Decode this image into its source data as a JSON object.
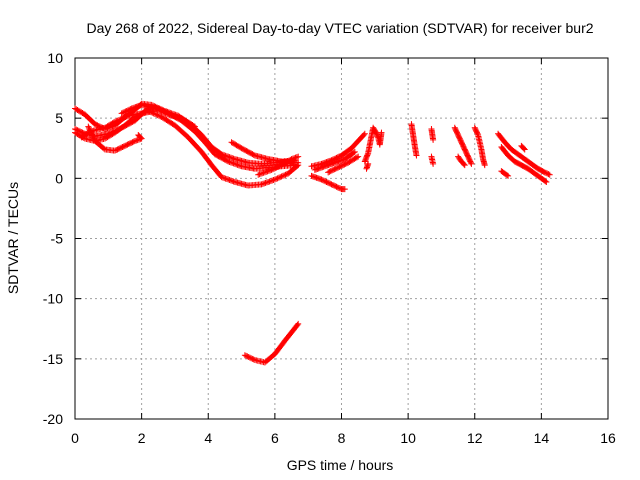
{
  "chart_data": {
    "type": "scatter",
    "title": "Day 268 of 2022, Sidereal Day-to-day VTEC variation (SDTVAR) for receiver bur2",
    "xlabel": "GPS time / hours",
    "ylabel": "SDTVAR / TECUs",
    "xlim": [
      0,
      16
    ],
    "ylim": [
      -20,
      10
    ],
    "x_ticks": [
      0,
      2,
      4,
      6,
      8,
      10,
      12,
      14,
      16
    ],
    "y_ticks": [
      -20,
      -15,
      -10,
      -5,
      0,
      5,
      10
    ],
    "x_tick_labels": [
      "0",
      "2",
      "4",
      "6",
      "8",
      "10",
      "12",
      "14",
      "16"
    ],
    "y_tick_labels": [
      "-20",
      "-15",
      "-10",
      "-5",
      "0",
      "5",
      "10"
    ],
    "grid": true,
    "marker": "+",
    "series": [
      {
        "name": "SDTVAR",
        "color": "#ff0000",
        "tracks": [
          [
            [
              0,
              5.8
            ],
            [
              0.3,
              5.3
            ],
            [
              0.6,
              4.5
            ],
            [
              0.9,
              4.1
            ],
            [
              1.2,
              4.4
            ],
            [
              1.5,
              5.1
            ],
            [
              1.8,
              5.7
            ],
            [
              2.0,
              6.2
            ],
            [
              2.3,
              6.1
            ],
            [
              2.7,
              5.6
            ],
            [
              3.1,
              5.2
            ],
            [
              3.5,
              4.4
            ],
            [
              3.8,
              3.6
            ],
            [
              4.1,
              2.6
            ],
            [
              4.4,
              2.0
            ],
            [
              4.8,
              1.6
            ],
            [
              5.2,
              1.3
            ],
            [
              5.6,
              1.2
            ],
            [
              6.0,
              1.3
            ],
            [
              6.4,
              1.4
            ],
            [
              6.7,
              1.3
            ]
          ],
          [
            [
              0,
              4.1
            ],
            [
              0.3,
              3.7
            ],
            [
              0.6,
              3.5
            ],
            [
              1.0,
              3.7
            ],
            [
              1.4,
              4.2
            ],
            [
              1.8,
              4.8
            ],
            [
              2.1,
              5.6
            ],
            [
              2.4,
              5.9
            ],
            [
              2.8,
              5.4
            ],
            [
              3.2,
              4.8
            ],
            [
              3.6,
              3.9
            ],
            [
              3.9,
              3.0
            ],
            [
              4.2,
              2.0
            ],
            [
              4.6,
              1.4
            ],
            [
              5.0,
              1.0
            ],
            [
              5.4,
              0.8
            ],
            [
              5.8,
              0.9
            ],
            [
              6.2,
              1.0
            ],
            [
              6.6,
              1.1
            ]
          ],
          [
            [
              0,
              3.8
            ],
            [
              0.3,
              3.3
            ],
            [
              0.6,
              3.1
            ],
            [
              0.9,
              3.3
            ],
            [
              1.2,
              3.8
            ],
            [
              1.5,
              4.4
            ],
            [
              1.8,
              5.1
            ],
            [
              2.2,
              5.6
            ],
            [
              2.6,
              5.1
            ],
            [
              3.0,
              4.4
            ],
            [
              3.4,
              3.4
            ],
            [
              3.8,
              2.2
            ],
            [
              4.1,
              1.1
            ],
            [
              4.4,
              0.1
            ],
            [
              4.8,
              -0.3
            ],
            [
              5.2,
              -0.6
            ],
            [
              5.6,
              -0.5
            ],
            [
              6.0,
              -0.1
            ],
            [
              6.4,
              0.4
            ],
            [
              6.7,
              1.1
            ]
          ],
          [
            [
              0.4,
              4.3
            ],
            [
              0.6,
              3.1
            ],
            [
              0.9,
              2.4
            ],
            [
              1.2,
              2.3
            ],
            [
              1.5,
              2.7
            ],
            [
              1.8,
              3.1
            ],
            [
              2.0,
              3.3
            ],
            [
              1.9,
              3.6
            ]
          ],
          [
            [
              0.2,
              3.4
            ],
            [
              0.4,
              3.8
            ],
            [
              0.6,
              4.0
            ],
            [
              0.9,
              4.2
            ],
            [
              1.2,
              4.7
            ],
            [
              1.6,
              5.2
            ],
            [
              2.0,
              5.4
            ],
            [
              2.4,
              5.6
            ]
          ],
          [
            [
              1.4,
              5.4
            ],
            [
              1.7,
              5.8
            ],
            [
              2.0,
              6.1
            ],
            [
              2.4,
              5.8
            ],
            [
              2.8,
              5.3
            ],
            [
              3.2,
              5.0
            ],
            [
              3.6,
              4.3
            ]
          ],
          [
            [
              4.7,
              3.0
            ],
            [
              5.0,
              2.5
            ],
            [
              5.4,
              1.9
            ],
            [
              5.8,
              1.6
            ],
            [
              6.2,
              1.4
            ],
            [
              6.6,
              1.5
            ]
          ],
          [
            [
              5.5,
              0.3
            ],
            [
              5.9,
              0.7
            ],
            [
              6.2,
              1.1
            ],
            [
              6.5,
              1.6
            ],
            [
              6.7,
              1.8
            ]
          ],
          [
            [
              5.1,
              -14.7
            ],
            [
              5.4,
              -15.1
            ],
            [
              5.7,
              -15.3
            ],
            [
              6.0,
              -14.6
            ],
            [
              6.3,
              -13.5
            ],
            [
              6.5,
              -12.8
            ],
            [
              6.7,
              -12.1
            ]
          ],
          [
            [
              7.1,
              1.0
            ],
            [
              7.4,
              1.2
            ],
            [
              7.7,
              1.5
            ],
            [
              8.0,
              1.9
            ],
            [
              8.3,
              2.5
            ],
            [
              8.5,
              3.1
            ],
            [
              8.7,
              3.7
            ]
          ],
          [
            [
              7.1,
              0.2
            ],
            [
              7.4,
              -0.1
            ],
            [
              7.7,
              -0.5
            ],
            [
              8.0,
              -0.9
            ],
            [
              8.1,
              -0.9
            ]
          ],
          [
            [
              7.2,
              0.7
            ],
            [
              7.5,
              1.0
            ],
            [
              7.8,
              1.3
            ],
            [
              8.1,
              1.6
            ],
            [
              8.4,
              2.2
            ]
          ],
          [
            [
              7.6,
              0.5
            ],
            [
              7.9,
              0.9
            ],
            [
              8.2,
              1.3
            ],
            [
              8.5,
              1.8
            ]
          ],
          [
            [
              8.7,
              1.4
            ],
            [
              8.8,
              2.1
            ],
            [
              8.85,
              2.8
            ],
            [
              8.9,
              3.5
            ],
            [
              8.95,
              4.2
            ],
            [
              9.0,
              4.0
            ],
            [
              9.1,
              3.4
            ],
            [
              9.15,
              2.8
            ],
            [
              9.2,
              3.8
            ]
          ],
          [
            [
              8.75,
              0.8
            ],
            [
              8.8,
              1.2
            ]
          ],
          [
            [
              10.1,
              4.5
            ],
            [
              10.15,
              3.6
            ],
            [
              10.2,
              2.7
            ],
            [
              10.25,
              1.9
            ]
          ],
          [
            [
              10.7,
              4.1
            ],
            [
              10.75,
              3.2
            ]
          ],
          [
            [
              10.7,
              1.8
            ],
            [
              10.75,
              1.2
            ]
          ],
          [
            [
              11.4,
              4.2
            ],
            [
              11.5,
              3.6
            ],
            [
              11.6,
              3.0
            ],
            [
              11.7,
              2.4
            ],
            [
              11.8,
              1.8
            ],
            [
              11.9,
              1.2
            ]
          ],
          [
            [
              11.5,
              1.8
            ],
            [
              11.6,
              1.4
            ],
            [
              11.7,
              1.1
            ]
          ],
          [
            [
              12.0,
              4.2
            ],
            [
              12.1,
              3.6
            ],
            [
              12.15,
              3.0
            ],
            [
              12.2,
              2.4
            ],
            [
              12.25,
              1.6
            ],
            [
              12.3,
              1.1
            ]
          ],
          [
            [
              12.7,
              3.7
            ],
            [
              12.9,
              3.0
            ],
            [
              13.1,
              2.4
            ],
            [
              13.3,
              2.0
            ],
            [
              13.5,
              1.6
            ],
            [
              13.7,
              1.2
            ],
            [
              13.9,
              0.8
            ],
            [
              14.1,
              0.5
            ],
            [
              14.25,
              0.3
            ]
          ],
          [
            [
              12.8,
              2.6
            ],
            [
              13.0,
              1.9
            ],
            [
              13.2,
              1.4
            ],
            [
              13.4,
              1.1
            ],
            [
              13.6,
              0.8
            ],
            [
              13.8,
              0.4
            ],
            [
              14.0,
              0.0
            ],
            [
              14.15,
              -0.3
            ]
          ],
          [
            [
              12.8,
              0.6
            ],
            [
              13.0,
              0.2
            ]
          ],
          [
            [
              13.4,
              2.7
            ],
            [
              13.5,
              2.4
            ]
          ]
        ]
      }
    ]
  }
}
